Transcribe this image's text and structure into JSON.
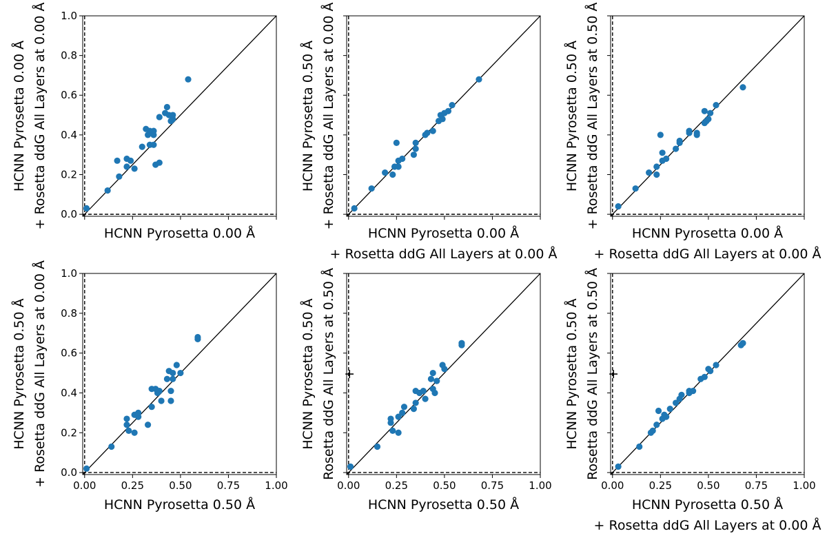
{
  "chart_data": [
    {
      "type": "scatter",
      "xlabel": "HCNN Pyrosetta 0.00 Å",
      "ylabel": "HCNN Pyrosetta 0.00 Å\n+ Rosetta ddG All Layers at 0.00 Å",
      "xlim": [
        -0.01,
        1.0
      ],
      "ylim": [
        -0.01,
        1.0
      ],
      "xticks_labeled": false,
      "yticks_labeled": true,
      "points": [
        [
          0.01,
          0.03
        ],
        [
          0.12,
          0.12
        ],
        [
          0.18,
          0.19
        ],
        [
          0.17,
          0.27
        ],
        [
          0.22,
          0.24
        ],
        [
          0.22,
          0.28
        ],
        [
          0.24,
          0.27
        ],
        [
          0.26,
          0.23
        ],
        [
          0.3,
          0.34
        ],
        [
          0.32,
          0.43
        ],
        [
          0.34,
          0.42
        ],
        [
          0.36,
          0.42
        ],
        [
          0.33,
          0.4
        ],
        [
          0.36,
          0.4
        ],
        [
          0.34,
          0.35
        ],
        [
          0.36,
          0.35
        ],
        [
          0.37,
          0.25
        ],
        [
          0.39,
          0.26
        ],
        [
          0.39,
          0.49
        ],
        [
          0.42,
          0.51
        ],
        [
          0.43,
          0.54
        ],
        [
          0.44,
          0.5
        ],
        [
          0.45,
          0.47
        ],
        [
          0.46,
          0.48
        ],
        [
          0.46,
          0.5
        ],
        [
          0.54,
          0.68
        ]
      ]
    },
    {
      "type": "scatter",
      "xlabel": "HCNN Pyrosetta 0.00 Å\n+ Rosetta ddG All Layers at 0.00 Å",
      "ylabel": "HCNN Pyrosetta 0.50 Å\n+ Rosetta ddG All Layers at 0.00 Å",
      "xlim": [
        -0.01,
        1.0
      ],
      "ylim": [
        -0.01,
        1.0
      ],
      "xticks_labeled": false,
      "yticks_labeled": false,
      "points": [
        [
          0.03,
          0.03
        ],
        [
          0.12,
          0.13
        ],
        [
          0.19,
          0.21
        ],
        [
          0.23,
          0.2
        ],
        [
          0.24,
          0.24
        ],
        [
          0.26,
          0.24
        ],
        [
          0.26,
          0.27
        ],
        [
          0.28,
          0.28
        ],
        [
          0.25,
          0.36
        ],
        [
          0.34,
          0.3
        ],
        [
          0.35,
          0.33
        ],
        [
          0.35,
          0.36
        ],
        [
          0.4,
          0.4
        ],
        [
          0.41,
          0.41
        ],
        [
          0.44,
          0.42
        ],
        [
          0.47,
          0.47
        ],
        [
          0.49,
          0.48
        ],
        [
          0.48,
          0.5
        ],
        [
          0.5,
          0.51
        ],
        [
          0.52,
          0.52
        ],
        [
          0.54,
          0.55
        ],
        [
          0.68,
          0.68
        ]
      ]
    },
    {
      "type": "scatter",
      "xlabel": "HCNN Pyrosetta 0.00 Å\n+ Rosetta ddG All Layers at 0.00 Å",
      "ylabel": "HCNN Pyrosetta 0.50 Å\n+ Rosetta ddG All Layers at 0.50 Å",
      "xlim": [
        -0.01,
        1.0
      ],
      "ylim": [
        -0.01,
        1.0
      ],
      "xticks_labeled": false,
      "yticks_labeled": false,
      "points": [
        [
          0.03,
          0.04
        ],
        [
          0.12,
          0.13
        ],
        [
          0.19,
          0.21
        ],
        [
          0.23,
          0.2
        ],
        [
          0.23,
          0.24
        ],
        [
          0.25,
          0.4
        ],
        [
          0.26,
          0.31
        ],
        [
          0.26,
          0.27
        ],
        [
          0.28,
          0.28
        ],
        [
          0.33,
          0.33
        ],
        [
          0.35,
          0.36
        ],
        [
          0.35,
          0.37
        ],
        [
          0.4,
          0.41
        ],
        [
          0.4,
          0.42
        ],
        [
          0.44,
          0.41
        ],
        [
          0.44,
          0.4
        ],
        [
          0.48,
          0.46
        ],
        [
          0.48,
          0.52
        ],
        [
          0.49,
          0.47
        ],
        [
          0.5,
          0.48
        ],
        [
          0.51,
          0.51
        ],
        [
          0.54,
          0.55
        ],
        [
          0.68,
          0.64
        ]
      ]
    },
    {
      "type": "scatter",
      "xlabel": "HCNN Pyrosetta 0.50 Å",
      "ylabel": "HCNN Pyrosetta 0.50 Å\n+ Rosetta ddG All Layers at 0.00 Å",
      "xlim": [
        -0.01,
        1.0
      ],
      "ylim": [
        -0.01,
        1.0
      ],
      "xticks_labeled": true,
      "yticks_labeled": true,
      "points": [
        [
          0.01,
          0.02
        ],
        [
          0.14,
          0.13
        ],
        [
          0.22,
          0.24
        ],
        [
          0.22,
          0.27
        ],
        [
          0.23,
          0.21
        ],
        [
          0.26,
          0.2
        ],
        [
          0.26,
          0.29
        ],
        [
          0.28,
          0.28
        ],
        [
          0.28,
          0.3
        ],
        [
          0.33,
          0.24
        ],
        [
          0.35,
          0.42
        ],
        [
          0.35,
          0.33
        ],
        [
          0.37,
          0.42
        ],
        [
          0.38,
          0.4
        ],
        [
          0.39,
          0.41
        ],
        [
          0.4,
          0.36
        ],
        [
          0.43,
          0.47
        ],
        [
          0.44,
          0.51
        ],
        [
          0.45,
          0.41
        ],
        [
          0.45,
          0.36
        ],
        [
          0.46,
          0.47
        ],
        [
          0.46,
          0.5
        ],
        [
          0.48,
          0.54
        ],
        [
          0.5,
          0.5
        ],
        [
          0.59,
          0.67
        ],
        [
          0.59,
          0.68
        ]
      ]
    },
    {
      "type": "scatter",
      "xlabel": "HCNN Pyrosetta 0.50 Å",
      "ylabel": "HCNN Pyrosetta 0.50 Å\nRosetta ddG All Layers at 0.50 Å\n+",
      "xlim": [
        -0.01,
        1.0
      ],
      "ylim": [
        -0.01,
        1.0
      ],
      "xticks_labeled": true,
      "yticks_labeled": false,
      "points": [
        [
          0.01,
          0.03
        ],
        [
          0.15,
          0.13
        ],
        [
          0.22,
          0.25
        ],
        [
          0.22,
          0.27
        ],
        [
          0.23,
          0.21
        ],
        [
          0.26,
          0.2
        ],
        [
          0.26,
          0.28
        ],
        [
          0.28,
          0.3
        ],
        [
          0.29,
          0.33
        ],
        [
          0.34,
          0.32
        ],
        [
          0.35,
          0.35
        ],
        [
          0.35,
          0.41
        ],
        [
          0.37,
          0.4
        ],
        [
          0.39,
          0.41
        ],
        [
          0.4,
          0.37
        ],
        [
          0.43,
          0.47
        ],
        [
          0.44,
          0.5
        ],
        [
          0.44,
          0.42
        ],
        [
          0.45,
          0.4
        ],
        [
          0.46,
          0.46
        ],
        [
          0.49,
          0.54
        ],
        [
          0.5,
          0.52
        ],
        [
          0.59,
          0.64
        ],
        [
          0.59,
          0.65
        ]
      ]
    },
    {
      "type": "scatter",
      "xlabel": "HCNN Pyrosetta 0.50 Å\n+ Rosetta ddG All Layers at 0.00 Å",
      "ylabel": "HCNN Pyrosetta 0.50 Å\nRosetta ddG All Layers at 0.50 Å\n+",
      "xlim": [
        -0.01,
        1.0
      ],
      "ylim": [
        -0.01,
        1.0
      ],
      "xticks_labeled": true,
      "yticks_labeled": false,
      "points": [
        [
          0.03,
          0.03
        ],
        [
          0.14,
          0.13
        ],
        [
          0.2,
          0.2
        ],
        [
          0.21,
          0.21
        ],
        [
          0.23,
          0.24
        ],
        [
          0.24,
          0.31
        ],
        [
          0.26,
          0.27
        ],
        [
          0.27,
          0.29
        ],
        [
          0.28,
          0.28
        ],
        [
          0.3,
          0.32
        ],
        [
          0.33,
          0.35
        ],
        [
          0.35,
          0.37
        ],
        [
          0.36,
          0.39
        ],
        [
          0.4,
          0.41
        ],
        [
          0.4,
          0.4
        ],
        [
          0.42,
          0.41
        ],
        [
          0.46,
          0.47
        ],
        [
          0.48,
          0.48
        ],
        [
          0.5,
          0.52
        ],
        [
          0.51,
          0.51
        ],
        [
          0.54,
          0.54
        ],
        [
          0.67,
          0.64
        ],
        [
          0.68,
          0.65
        ]
      ]
    }
  ],
  "axis": {
    "tick_values": [
      0.0,
      0.2,
      0.4,
      0.6,
      0.8,
      1.0
    ],
    "x_tick_values": [
      0.0,
      0.25,
      0.5,
      0.75,
      1.0
    ],
    "y_tick_labels": [
      "0.0",
      "0.2",
      "0.4",
      "0.6",
      "0.8",
      "1.0"
    ],
    "x_tick_labels": [
      "0.00",
      "0.25",
      "0.50",
      "0.75",
      "1.00"
    ]
  },
  "colors": {
    "points": "#1f77b4",
    "diagonal": "#000000",
    "reference_lines": "#000000"
  }
}
